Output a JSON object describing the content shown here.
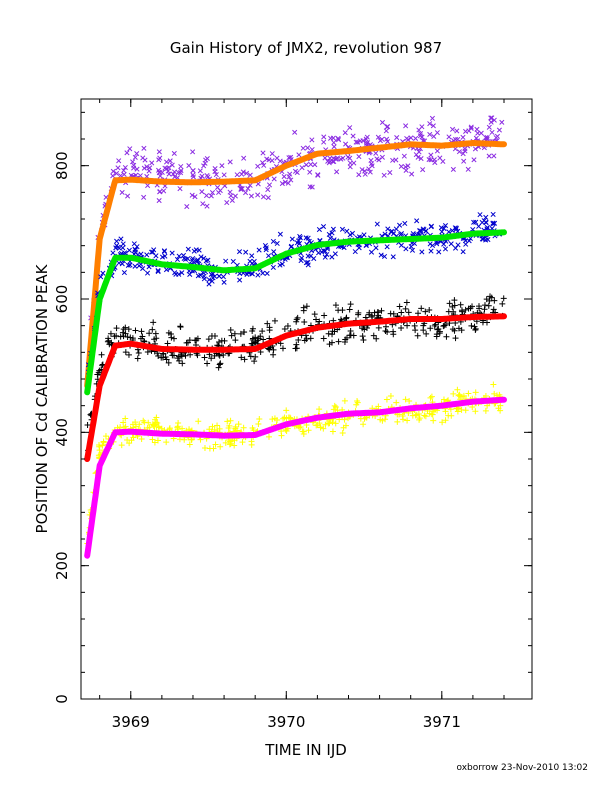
{
  "footer": "oxborrow 23-Nov-2010 13:02",
  "chart_data": {
    "type": "scatter",
    "title": "Gain History of JMX2, revolution 987",
    "xlabel": "TIME IN IJD",
    "ylabel": "POSITION OF Cd CALIBRATION PEAK",
    "xlim": [
      3968.68,
      3971.58
    ],
    "ylim": [
      0,
      900
    ],
    "xticks": [
      3969,
      3970,
      3971
    ],
    "yticks": [
      0,
      200,
      400,
      600,
      800
    ],
    "grid": false,
    "legend": "none",
    "x": [
      3968.72,
      3968.8,
      3968.9,
      3969.0,
      3969.2,
      3969.4,
      3969.6,
      3969.8,
      3970.0,
      3970.2,
      3970.4,
      3970.6,
      3970.8,
      3971.0,
      3971.2,
      3971.4
    ],
    "series": [
      {
        "marker": "x",
        "color": "#8a2be2",
        "role": "points",
        "values": [
          480,
          700,
          790,
          795,
          785,
          780,
          770,
          780,
          805,
          815,
          820,
          825,
          830,
          830,
          835,
          840
        ],
        "scatter": 22
      },
      {
        "marker": "line",
        "color": "#ff7f00",
        "role": "fit",
        "values": [
          470,
          690,
          778,
          779,
          776,
          775,
          776,
          778,
          800,
          818,
          822,
          827,
          832,
          830,
          834,
          832
        ],
        "scatter": 0
      },
      {
        "marker": "x",
        "color": "#0000cd",
        "role": "points",
        "values": [
          470,
          610,
          665,
          660,
          655,
          648,
          640,
          650,
          670,
          680,
          683,
          688,
          690,
          690,
          700,
          710
        ],
        "scatter": 15
      },
      {
        "marker": "line",
        "color": "#00e600",
        "role": "fit",
        "values": [
          460,
          600,
          662,
          662,
          652,
          648,
          643,
          646,
          668,
          681,
          686,
          688,
          690,
          692,
          698,
          700
        ],
        "scatter": 0
      },
      {
        "marker": "+",
        "color": "#000000",
        "role": "points",
        "values": [
          390,
          500,
          540,
          545,
          530,
          525,
          525,
          530,
          545,
          555,
          560,
          565,
          570,
          570,
          575,
          590
        ],
        "scatter": 18
      },
      {
        "marker": "line",
        "color": "#ff0000",
        "role": "fit",
        "values": [
          360,
          470,
          530,
          533,
          525,
          524,
          524,
          525,
          545,
          557,
          563,
          566,
          570,
          570,
          573,
          574
        ],
        "scatter": 0
      },
      {
        "marker": "+",
        "color": "#ffff00",
        "role": "points",
        "values": [
          240,
          370,
          400,
          405,
          400,
          398,
          395,
          398,
          410,
          420,
          425,
          430,
          435,
          440,
          445,
          450
        ],
        "scatter": 12
      },
      {
        "marker": "line",
        "color": "#ff00ff",
        "role": "fit",
        "values": [
          215,
          350,
          400,
          401,
          398,
          397,
          395,
          396,
          412,
          422,
          428,
          430,
          436,
          440,
          446,
          449
        ],
        "scatter": 0
      }
    ]
  }
}
